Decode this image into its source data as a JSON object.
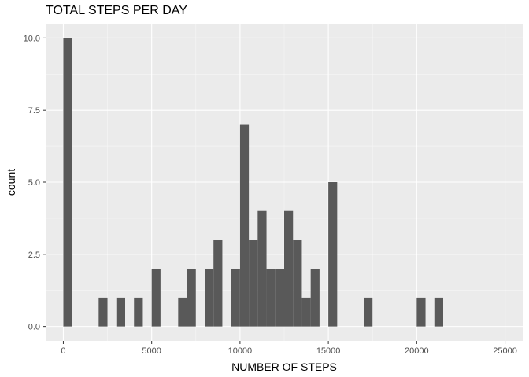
{
  "chart_data": {
    "type": "bar",
    "title": "TOTAL STEPS PER DAY",
    "xlabel": "NUMBER OF STEPS",
    "ylabel": "count",
    "xlim": [
      -1000,
      26000
    ],
    "ylim": [
      -0.5,
      10.5
    ],
    "xticks": [
      0,
      5000,
      10000,
      15000,
      20000,
      25000
    ],
    "xtick_labels": [
      "0",
      "5000",
      "10000",
      "15000",
      "20000",
      "25000"
    ],
    "yticks": [
      0,
      2.5,
      5,
      7.5,
      10
    ],
    "ytick_labels": [
      "0.0",
      "2.5",
      "5.0",
      "7.5",
      "10.0"
    ],
    "bin_width": 500,
    "bins": [
      {
        "x": 250,
        "count": 10
      },
      {
        "x": 2250,
        "count": 1
      },
      {
        "x": 3250,
        "count": 1
      },
      {
        "x": 4250,
        "count": 1
      },
      {
        "x": 5250,
        "count": 2
      },
      {
        "x": 6750,
        "count": 1
      },
      {
        "x": 7250,
        "count": 2
      },
      {
        "x": 8250,
        "count": 2
      },
      {
        "x": 8750,
        "count": 3
      },
      {
        "x": 9750,
        "count": 2
      },
      {
        "x": 10250,
        "count": 7
      },
      {
        "x": 10750,
        "count": 3
      },
      {
        "x": 11250,
        "count": 4
      },
      {
        "x": 11750,
        "count": 2
      },
      {
        "x": 12250,
        "count": 2
      },
      {
        "x": 12750,
        "count": 4
      },
      {
        "x": 13250,
        "count": 3
      },
      {
        "x": 13750,
        "count": 1
      },
      {
        "x": 14250,
        "count": 2
      },
      {
        "x": 15250,
        "count": 5
      },
      {
        "x": 17250,
        "count": 1
      },
      {
        "x": 20250,
        "count": 1
      },
      {
        "x": 21250,
        "count": 1
      }
    ],
    "grid": true,
    "colors": {
      "panel": "#ebebeb",
      "grid_major": "#ffffff",
      "bar": "#595959"
    }
  }
}
